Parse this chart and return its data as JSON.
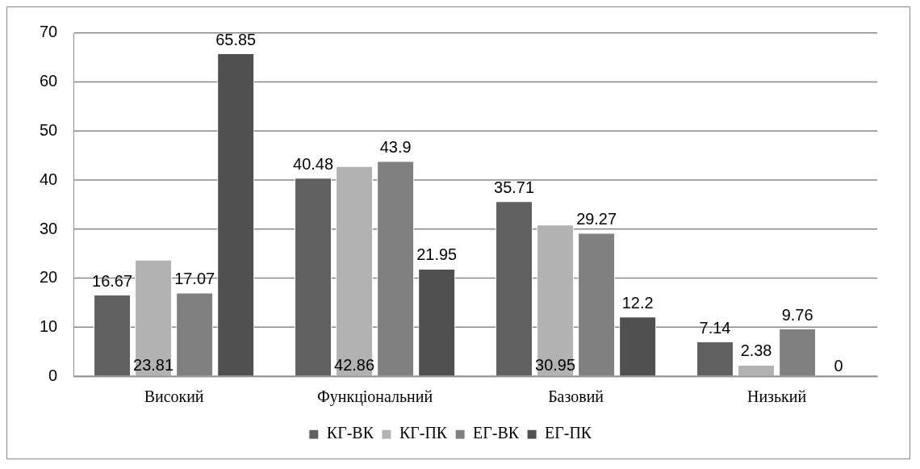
{
  "chart_data": {
    "type": "bar",
    "categories": [
      "Високий",
      "Функціональний",
      "Базовий",
      "Низький"
    ],
    "series": [
      {
        "name": "КГ-ВК",
        "color": "#606060",
        "values": [
          16.67,
          40.48,
          35.71,
          7.14
        ]
      },
      {
        "name": "КГ-ПК",
        "color": "#b2b2b2",
        "values": [
          23.81,
          42.86,
          30.95,
          2.38
        ]
      },
      {
        "name": "ЕГ-ВК",
        "color": "#808080",
        "values": [
          17.07,
          43.9,
          29.27,
          9.76
        ]
      },
      {
        "name": "ЕГ-ПК",
        "color": "#505050",
        "values": [
          65.85,
          21.95,
          12.2,
          0
        ]
      }
    ],
    "ylim": [
      0,
      70
    ],
    "yticks": [
      0,
      10,
      20,
      30,
      40,
      50,
      60,
      70
    ],
    "grid": "y",
    "legend": "bottom",
    "data_labels": true
  }
}
